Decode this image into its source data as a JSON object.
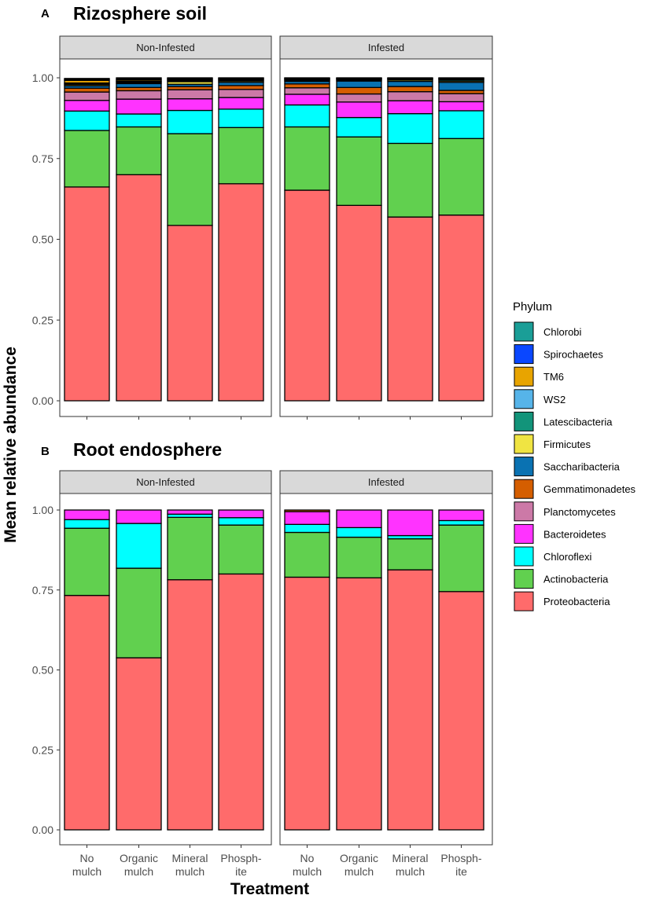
{
  "legend": {
    "title": "Phylum",
    "items": [
      {
        "name": "Chlorobi",
        "color": "#1A9E97"
      },
      {
        "name": "Spirochaetes",
        "color": "#0A47FF"
      },
      {
        "name": "TM6",
        "color": "#E8A400"
      },
      {
        "name": "WS2",
        "color": "#56B4E9"
      },
      {
        "name": "Latescibacteria",
        "color": "#12947A"
      },
      {
        "name": "Firmicutes",
        "color": "#F0E442"
      },
      {
        "name": "Saccharibacteria",
        "color": "#0A72B2"
      },
      {
        "name": "Gemmatimonadetes",
        "color": "#D55E00"
      },
      {
        "name": "Planctomycetes",
        "color": "#CC79A7"
      },
      {
        "name": "Bacteroidetes",
        "color": "#FF33FF"
      },
      {
        "name": "Chloroflexi",
        "color": "#00FFFF"
      },
      {
        "name": "Actinobacteria",
        "color": "#61D04F"
      },
      {
        "name": "Proteobacteria",
        "color": "#FF6B6B"
      }
    ]
  },
  "axes": {
    "ylabel": "Mean relative abundance",
    "xlabel": "Treatment",
    "y_ticks": [
      "0.00",
      "0.25",
      "0.50",
      "0.75",
      "1.00"
    ],
    "x_tick_labels": [
      [
        "No",
        "mulch"
      ],
      [
        "Organic",
        "mulch"
      ],
      [
        "Mineral",
        "mulch"
      ],
      [
        "Phosph-",
        "ite"
      ]
    ]
  },
  "chart_data": [
    {
      "type": "bar",
      "stacked": true,
      "panel_label": "A",
      "title": "Rizosphere soil",
      "ylim": [
        0,
        1
      ],
      "categories": [
        "No mulch",
        "Organic mulch",
        "Mineral mulch",
        "Phosphite"
      ],
      "facets": [
        {
          "name": "Non-Infested",
          "bars": [
            {
              "Proteobacteria": 0.662,
              "Actinobacteria": 0.175,
              "Chloroflexi": 0.06,
              "Bacteroidetes": 0.033,
              "Planctomycetes": 0.026,
              "Gemmatimonadetes": 0.012,
              "Saccharibacteria": 0.007,
              "Firmicutes": 0.004,
              "Latescibacteria": 0.003,
              "WS2": 0.002,
              "TM6": 0.008,
              "Spirochaetes": 0.003,
              "Chlorobi": 0.003
            },
            {
              "Proteobacteria": 0.7,
              "Actinobacteria": 0.148,
              "Chloroflexi": 0.04,
              "Bacteroidetes": 0.046,
              "Planctomycetes": 0.026,
              "Gemmatimonadetes": 0.01,
              "Saccharibacteria": 0.012,
              "Firmicutes": 0.003,
              "Latescibacteria": 0.003,
              "WS2": 0.002,
              "TM6": 0.004,
              "Spirochaetes": 0.003,
              "Chlorobi": 0.003
            },
            {
              "Proteobacteria": 0.543,
              "Actinobacteria": 0.284,
              "Chloroflexi": 0.072,
              "Bacteroidetes": 0.036,
              "Planctomycetes": 0.028,
              "Gemmatimonadetes": 0.01,
              "Saccharibacteria": 0.007,
              "Firmicutes": 0.008,
              "Latescibacteria": 0.003,
              "WS2": 0.002,
              "TM6": 0.003,
              "Spirochaetes": 0.002,
              "Chlorobi": 0.002
            },
            {
              "Proteobacteria": 0.672,
              "Actinobacteria": 0.174,
              "Chloroflexi": 0.057,
              "Bacteroidetes": 0.036,
              "Planctomycetes": 0.025,
              "Gemmatimonadetes": 0.012,
              "Saccharibacteria": 0.01,
              "Firmicutes": 0.004,
              "Latescibacteria": 0.003,
              "WS2": 0.002,
              "TM6": 0.002,
              "Spirochaetes": 0.002,
              "Chlorobi": 0.001
            }
          ]
        },
        {
          "name": "Infested",
          "bars": [
            {
              "Proteobacteria": 0.652,
              "Actinobacteria": 0.196,
              "Chloroflexi": 0.068,
              "Bacteroidetes": 0.033,
              "Planctomycetes": 0.02,
              "Gemmatimonadetes": 0.012,
              "Saccharibacteria": 0.008,
              "Firmicutes": 0.003,
              "Latescibacteria": 0.002,
              "WS2": 0.002,
              "TM6": 0.002,
              "Spirochaetes": 0.001,
              "Chlorobi": 0.001
            },
            {
              "Proteobacteria": 0.605,
              "Actinobacteria": 0.212,
              "Chloroflexi": 0.06,
              "Bacteroidetes": 0.048,
              "Planctomycetes": 0.025,
              "Gemmatimonadetes": 0.02,
              "Saccharibacteria": 0.02,
              "Firmicutes": 0.003,
              "Latescibacteria": 0.002,
              "WS2": 0.002,
              "TM6": 0.001,
              "Spirochaetes": 0.001,
              "Chlorobi": 0.001
            },
            {
              "Proteobacteria": 0.569,
              "Actinobacteria": 0.228,
              "Chloroflexi": 0.092,
              "Bacteroidetes": 0.04,
              "Planctomycetes": 0.028,
              "Gemmatimonadetes": 0.016,
              "Saccharibacteria": 0.016,
              "Firmicutes": 0.004,
              "Latescibacteria": 0.002,
              "WS2": 0.002,
              "TM6": 0.001,
              "Spirochaetes": 0.001,
              "Chlorobi": 0.001
            },
            {
              "Proteobacteria": 0.575,
              "Actinobacteria": 0.237,
              "Chloroflexi": 0.086,
              "Bacteroidetes": 0.028,
              "Planctomycetes": 0.025,
              "Gemmatimonadetes": 0.01,
              "Saccharibacteria": 0.025,
              "Firmicutes": 0.004,
              "Latescibacteria": 0.004,
              "WS2": 0.002,
              "TM6": 0.002,
              "Spirochaetes": 0.001,
              "Chlorobi": 0.001
            }
          ]
        }
      ]
    },
    {
      "type": "bar",
      "stacked": true,
      "panel_label": "B",
      "title": "Root endosphere",
      "ylim": [
        0,
        1
      ],
      "categories": [
        "No mulch",
        "Organic mulch",
        "Mineral mulch",
        "Phosphite"
      ],
      "facets": [
        {
          "name": "Non-Infested",
          "bars": [
            {
              "Proteobacteria": 0.733,
              "Actinobacteria": 0.21,
              "Chloroflexi": 0.027,
              "Bacteroidetes": 0.03
            },
            {
              "Proteobacteria": 0.538,
              "Actinobacteria": 0.28,
              "Chloroflexi": 0.14,
              "Bacteroidetes": 0.042
            },
            {
              "Proteobacteria": 0.782,
              "Actinobacteria": 0.195,
              "Chloroflexi": 0.01,
              "Bacteroidetes": 0.013
            },
            {
              "Proteobacteria": 0.8,
              "Actinobacteria": 0.153,
              "Chloroflexi": 0.023,
              "Bacteroidetes": 0.024
            }
          ]
        },
        {
          "name": "Infested",
          "bars": [
            {
              "Proteobacteria": 0.79,
              "Actinobacteria": 0.14,
              "Chloroflexi": 0.025,
              "Bacteroidetes": 0.04,
              "Gemmatimonadetes": 0.005
            },
            {
              "Proteobacteria": 0.788,
              "Actinobacteria": 0.127,
              "Chloroflexi": 0.03,
              "Bacteroidetes": 0.055
            },
            {
              "Proteobacteria": 0.813,
              "Actinobacteria": 0.097,
              "Chloroflexi": 0.01,
              "Bacteroidetes": 0.08
            },
            {
              "Proteobacteria": 0.745,
              "Actinobacteria": 0.208,
              "Chloroflexi": 0.014,
              "Bacteroidetes": 0.033
            }
          ]
        }
      ]
    }
  ]
}
